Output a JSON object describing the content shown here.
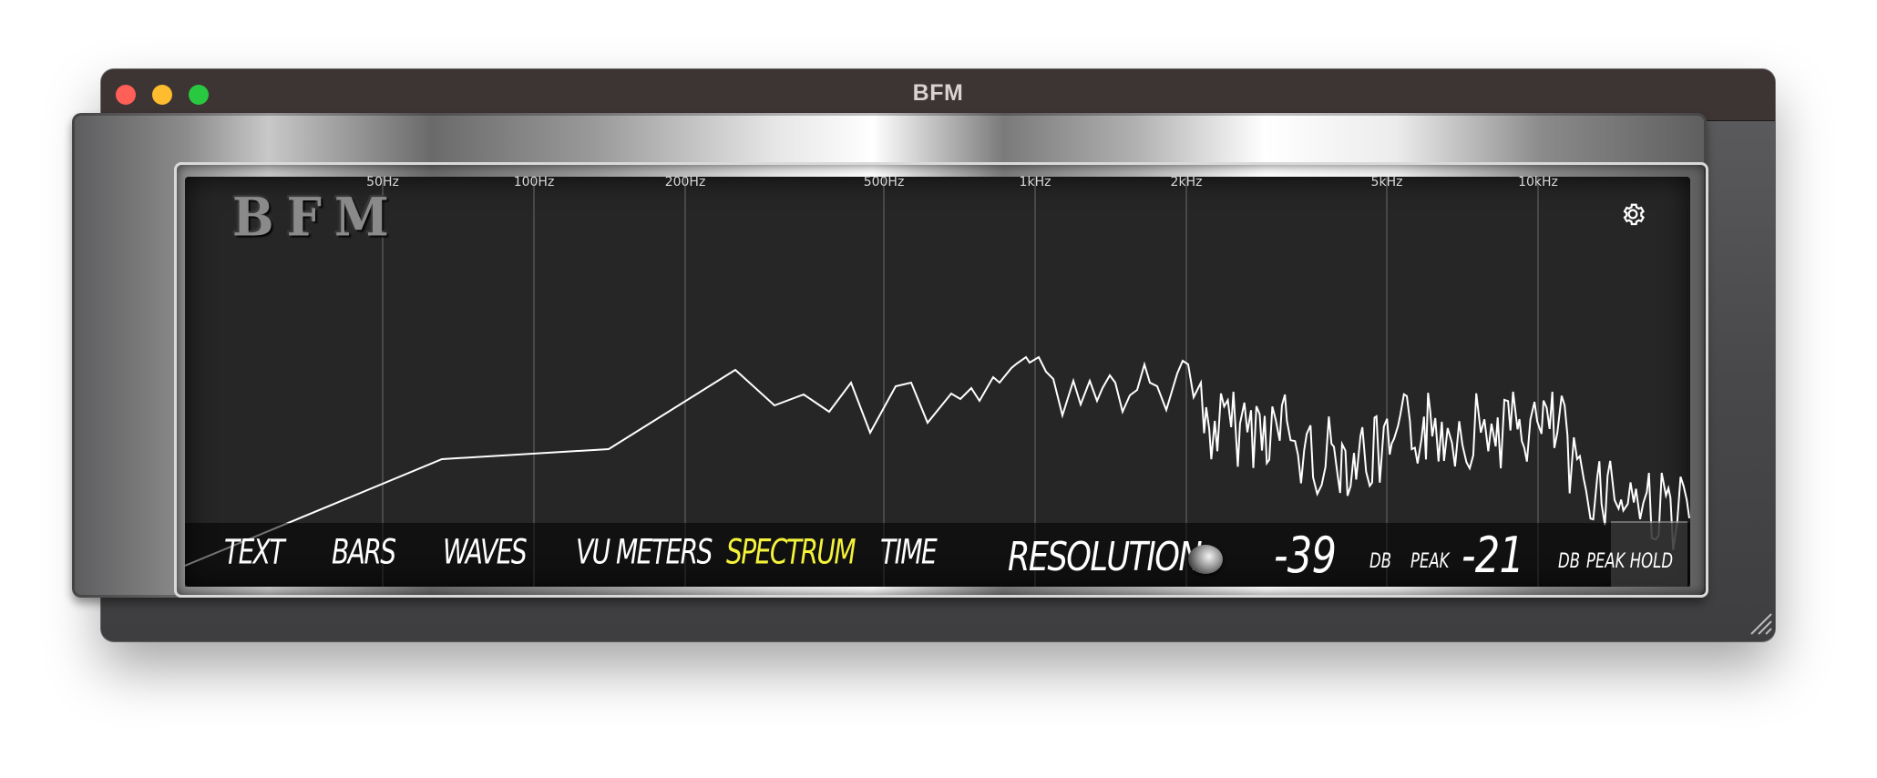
{
  "window": {
    "title": "BFM",
    "controls": [
      "close",
      "minimize",
      "maximize"
    ]
  },
  "logo": "BFM",
  "settings_icon": "gear-icon",
  "frequency_labels": [
    "50Hz",
    "100Hz",
    "200Hz",
    "500Hz",
    "1kHz",
    "2kHz",
    "5kHz",
    "10kHz"
  ],
  "modes": [
    {
      "label": "TEXT",
      "active": false
    },
    {
      "label": "BARS",
      "active": false
    },
    {
      "label": "WAVES",
      "active": false
    },
    {
      "label": "VU METERS",
      "active": false
    },
    {
      "label": "SPECTRUM",
      "active": true
    },
    {
      "label": "TIME",
      "active": false
    }
  ],
  "resolution_label": "RESOLUTION",
  "level": {
    "value": "-39",
    "unit": "DB",
    "peak_label": "PEAK"
  },
  "peak": {
    "value": "-21",
    "unit": "DB",
    "hold_label": "PEAK HOLD"
  },
  "colors": {
    "active_mode": "#f4f23a",
    "text": "#ffffff",
    "screen": "#262627"
  }
}
